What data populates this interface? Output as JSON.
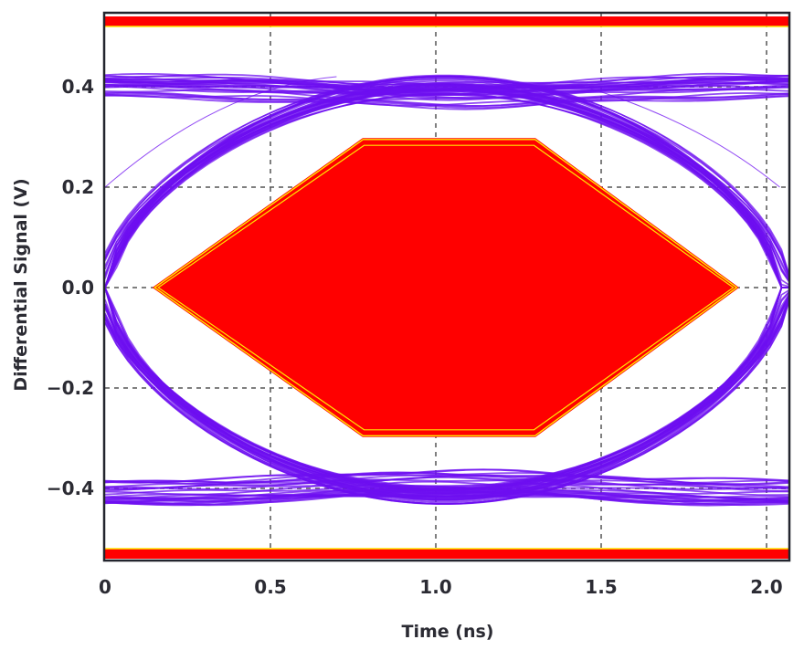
{
  "chart_data": {
    "type": "eye-diagram",
    "xlabel": "Time (ns)",
    "ylabel": "Differential Signal (V)",
    "xlim": [
      0,
      2.05
    ],
    "ylim": [
      -0.54,
      0.54
    ],
    "x_ticks": [
      {
        "value": 0,
        "label": "0"
      },
      {
        "value": 0.5,
        "label": "0.5"
      },
      {
        "value": 1.0,
        "label": "1.0"
      },
      {
        "value": 1.5,
        "label": "1.5"
      },
      {
        "value": 2.0,
        "label": "2.0"
      }
    ],
    "y_ticks": [
      {
        "value": 0.4,
        "label": "0.4"
      },
      {
        "value": 0.2,
        "label": "0.2"
      },
      {
        "value": 0.0,
        "label": "0.0"
      },
      {
        "value": -0.2,
        "label": "−0.2"
      },
      {
        "value": -0.4,
        "label": "−0.4"
      }
    ],
    "grid": true,
    "grid_style": "dashed",
    "eye_mask": {
      "polygon": [
        [
          0.15,
          0
        ],
        [
          0.78,
          0.295
        ],
        [
          1.3,
          0.295
        ],
        [
          1.91,
          0
        ],
        [
          1.3,
          -0.295
        ],
        [
          0.78,
          -0.295
        ]
      ]
    },
    "limit_bands": [
      {
        "y_from": 0.52,
        "y_to": 0.54
      },
      {
        "y_from": -0.54,
        "y_to": -0.52
      }
    ],
    "signal": {
      "high_level": 0.4,
      "low_level": -0.41,
      "crossing_time": 0.0,
      "period": 2.05
    },
    "colors": {
      "trace": "#6e0ff0",
      "mask": "#ff0000",
      "mask_edge": "#ffe600",
      "grid": "#555555",
      "frame": "#23252e",
      "text": "#2b2b33"
    }
  }
}
